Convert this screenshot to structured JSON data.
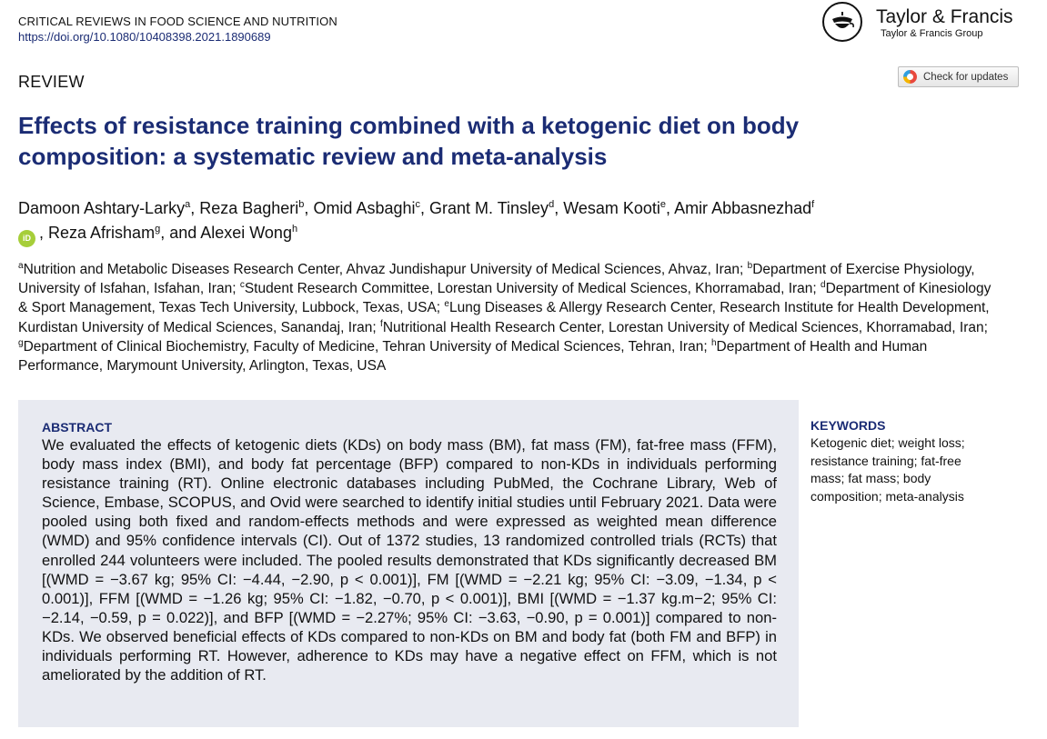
{
  "journal": {
    "name": "CRITICAL REVIEWS IN FOOD SCIENCE AND NUTRITION",
    "doi": "https://doi.org/10.1080/10408398.2021.1890689"
  },
  "publisher": {
    "name": "Taylor & Francis",
    "group": "Taylor & Francis Group",
    "logo_icon": "lamp-logo-icon"
  },
  "article_type": "REVIEW",
  "check_updates": {
    "label": "Check for updates",
    "icon": "crossmark-icon"
  },
  "title": "Effects of resistance training combined with a ketogenic diet on body composition: a systematic review and meta-analysis",
  "orcid_label": "iD",
  "authors": [
    {
      "name": "Damoon Ashtary-Larky",
      "sup": "a"
    },
    {
      "name": "Reza Bagheri",
      "sup": "b"
    },
    {
      "name": "Omid Asbaghi",
      "sup": "c"
    },
    {
      "name": "Grant M. Tinsley",
      "sup": "d"
    },
    {
      "name": "Wesam Kooti",
      "sup": "e"
    },
    {
      "name": "Amir Abbasnezhad",
      "sup": "f"
    },
    {
      "name": "Reza Afrisham",
      "sup": "g"
    },
    {
      "name": "Alexei Wong",
      "sup": "h"
    }
  ],
  "affiliations": [
    {
      "sup": "a",
      "text": "Nutrition and Metabolic Diseases Research Center, Ahvaz Jundishapur University of Medical Sciences, Ahvaz, Iran;"
    },
    {
      "sup": "b",
      "text": "Department of Exercise Physiology, University of Isfahan, Isfahan, Iran;"
    },
    {
      "sup": "c",
      "text": "Student Research Committee, Lorestan University of Medical Sciences, Khorramabad, Iran;"
    },
    {
      "sup": "d",
      "text": "Department of Kinesiology & Sport Management, Texas Tech University, Lubbock, Texas, USA;"
    },
    {
      "sup": "e",
      "text": "Lung Diseases & Allergy Research Center, Research Institute for Health Development, Kurdistan University of Medical Sciences, Sanandaj, Iran;"
    },
    {
      "sup": "f",
      "text": "Nutritional Health Research Center, Lorestan University of Medical Sciences, Khorramabad, Iran;"
    },
    {
      "sup": "g",
      "text": "Department of Clinical Biochemistry, Faculty of Medicine, Tehran University of Medical Sciences, Tehran, Iran;"
    },
    {
      "sup": "h",
      "text": "Department of Health and Human Performance, Marymount University, Arlington, Texas, USA"
    }
  ],
  "abstract": {
    "heading": "ABSTRACT",
    "text": "We evaluated the effects of ketogenic diets (KDs) on body mass (BM), fat mass (FM), fat-free mass (FFM), body mass index (BMI), and body fat percentage (BFP) compared to non-KDs in individuals performing resistance training (RT). Online electronic databases including PubMed, the Cochrane Library, Web of Science, Embase, SCOPUS, and Ovid were searched to identify initial studies until February 2021. Data were pooled using both fixed and random-effects methods and were expressed as weighted mean difference (WMD) and 95% confidence intervals (CI). Out of 1372 studies, 13 randomized controlled trials (RCTs) that enrolled 244 volunteers were included. The pooled results demonstrated that KDs significantly decreased BM [(WMD = −3.67 kg; 95% CI: −4.44, −2.90, p < 0.001)], FM [(WMD = −2.21 kg; 95% CI: −3.09, −1.34, p < 0.001)], FFM [(WMD = −1.26 kg; 95% CI: −1.82, −0.70, p < 0.001)], BMI [(WMD = −1.37 kg.m−2; 95% CI: −2.14, −0.59, p = 0.022)], and BFP [(WMD = −2.27%; 95% CI: −3.63, −0.90, p = 0.001)] compared to non-KDs. We observed beneficial effects of KDs compared to non-KDs on BM and body fat (both FM and BFP) in individuals performing RT. However, adherence to KDs may have a negative effect on FFM, which is not ameliorated by the addition of RT."
  },
  "keywords": {
    "heading": "KEYWORDS",
    "text": "Ketogenic diet; weight loss; resistance training; fat-free mass; fat mass; body composition; meta-analysis"
  },
  "colors": {
    "title": "#1b2c74",
    "abstract_bg": "#e8eaf1",
    "orcid": "#a6ce39"
  }
}
